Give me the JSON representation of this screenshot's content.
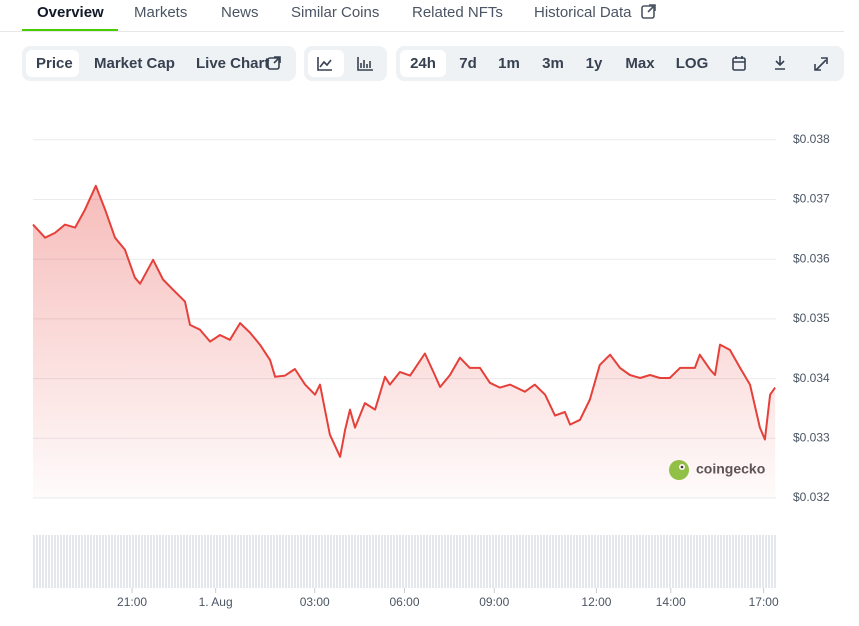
{
  "tabs": [
    "Overview",
    "Markets",
    "News",
    "Similar Coins",
    "Related NFTs",
    "Historical Data"
  ],
  "toolbar": {
    "metrics": [
      "Price",
      "Market Cap",
      "Live Chart"
    ],
    "ranges": [
      "24h",
      "7d",
      "1m",
      "3m",
      "1y",
      "Max",
      "LOG"
    ]
  },
  "chart_data": {
    "type": "line",
    "watermark": "coingecko",
    "color": "#e5403a",
    "xlim": [
      0,
      24
    ],
    "xticks": [
      {
        "value": 3.2,
        "label": "21:00"
      },
      {
        "value": 5.9,
        "label": "1. Aug"
      },
      {
        "value": 9.1,
        "label": "03:00"
      },
      {
        "value": 12.0,
        "label": "06:00"
      },
      {
        "value": 14.9,
        "label": "09:00"
      },
      {
        "value": 18.2,
        "label": "12:00"
      },
      {
        "value": 20.6,
        "label": "14:00"
      },
      {
        "value": 23.6,
        "label": "17:00"
      }
    ],
    "ylim": [
      0.032,
      0.0387
    ],
    "yticks": [
      {
        "value": 0.032,
        "label": "$0.032"
      },
      {
        "value": 0.033,
        "label": "$0.033"
      },
      {
        "value": 0.034,
        "label": "$0.034"
      },
      {
        "value": 0.035,
        "label": "$0.035"
      },
      {
        "value": 0.036,
        "label": "$0.036"
      },
      {
        "value": 0.037,
        "label": "$0.037"
      },
      {
        "value": 0.038,
        "label": "$0.038"
      }
    ],
    "grid": true,
    "x": [
      0,
      0.39,
      0.71,
      1.03,
      1.36,
      1.68,
      2.03,
      2.33,
      2.65,
      2.97,
      3.29,
      3.46,
      3.88,
      4.2,
      4.52,
      4.91,
      5.07,
      5.39,
      5.72,
      6.04,
      6.36,
      6.69,
      7.01,
      7.33,
      7.66,
      7.82,
      8.14,
      8.46,
      8.79,
      9.11,
      9.27,
      9.43,
      9.59,
      9.92,
      10.08,
      10.24,
      10.4,
      10.72,
      11.05,
      11.37,
      11.53,
      11.85,
      12.18,
      12.66,
      12.98,
      13.15,
      13.47,
      13.79,
      14.11,
      14.44,
      14.76,
      15.08,
      15.41,
      15.89,
      16.21,
      16.54,
      16.86,
      17.18,
      17.35,
      17.67,
      17.99,
      18.31,
      18.64,
      18.96,
      19.28,
      19.61,
      19.93,
      20.25,
      20.57,
      20.9,
      21.38,
      21.54,
      21.87,
      22.03,
      22.19,
      22.51,
      22.84,
      23.16,
      23.48,
      23.64,
      23.81,
      23.97
    ],
    "values": [
      0.03658,
      0.03636,
      0.03644,
      0.03658,
      0.03653,
      0.03683,
      0.03723,
      0.03683,
      0.03636,
      0.03616,
      0.03569,
      0.03559,
      0.03599,
      0.03566,
      0.03549,
      0.03529,
      0.0349,
      0.03482,
      0.03462,
      0.03473,
      0.03465,
      0.03493,
      0.03477,
      0.03457,
      0.03431,
      0.03403,
      0.03405,
      0.03416,
      0.0339,
      0.03373,
      0.0339,
      0.03348,
      0.03306,
      0.03269,
      0.03314,
      0.03348,
      0.03318,
      0.03359,
      0.03348,
      0.03403,
      0.0339,
      0.03411,
      0.03405,
      0.03442,
      0.03406,
      0.03386,
      0.03406,
      0.03435,
      0.03418,
      0.03418,
      0.03393,
      0.03385,
      0.0339,
      0.03378,
      0.0339,
      0.03373,
      0.03338,
      0.03344,
      0.03323,
      0.03331,
      0.03365,
      0.03423,
      0.0344,
      0.03418,
      0.03406,
      0.03401,
      0.03406,
      0.03401,
      0.03401,
      0.03418,
      0.03418,
      0.0344,
      0.03415,
      0.03406,
      0.03457,
      0.03448,
      0.03418,
      0.0339,
      0.03318,
      0.03298,
      0.03373,
      0.03385
    ]
  }
}
